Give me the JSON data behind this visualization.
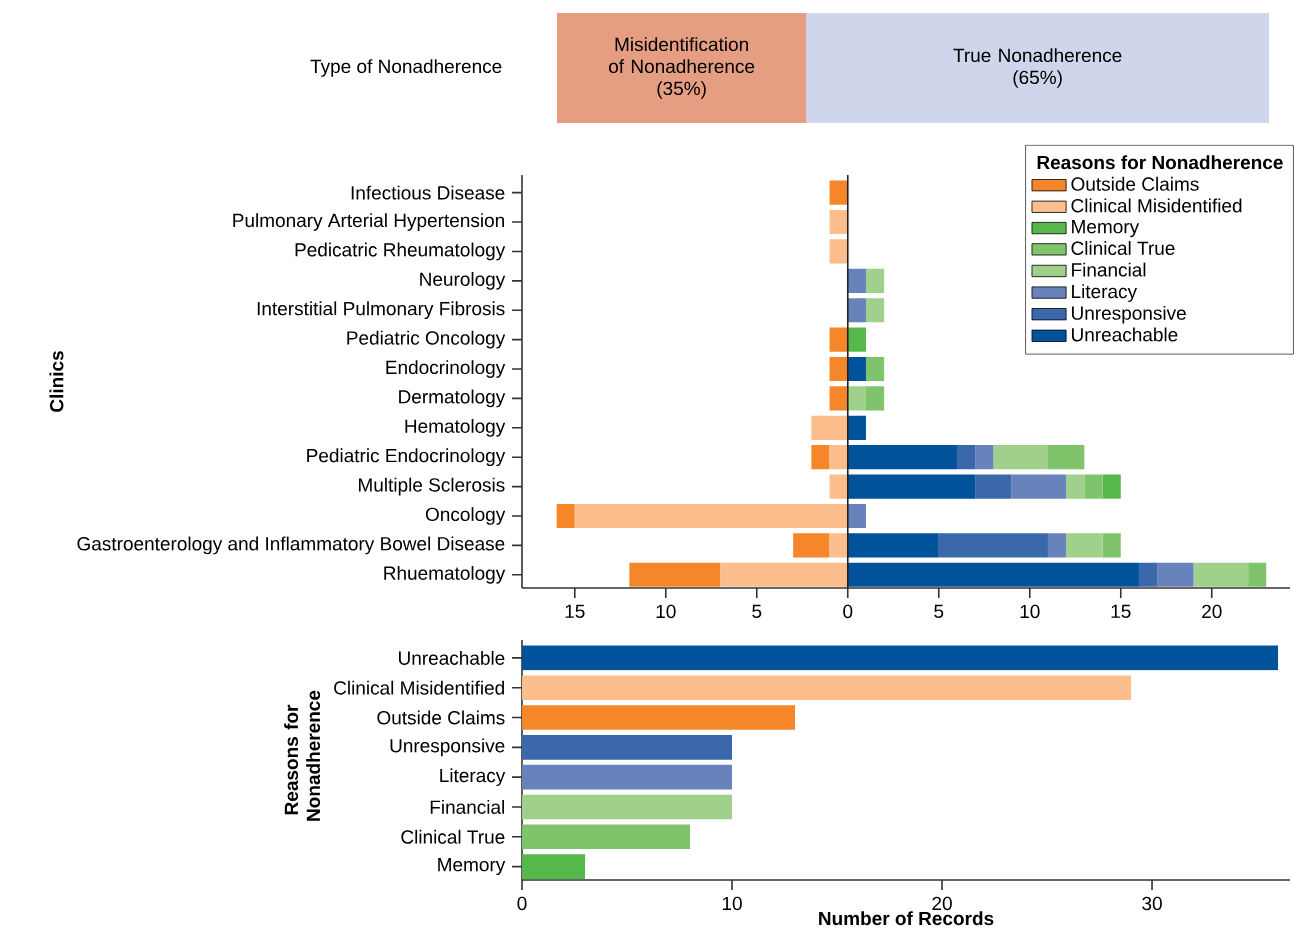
{
  "chart_data": [
    {
      "type": "bar",
      "orientation": "horizontal",
      "stacked": true,
      "categories": [
        "Type of Nonadherence"
      ],
      "series": [
        {
          "name": "Misidentification of Nonadherence",
          "color": "#e69e83",
          "values": [
            35
          ],
          "value_labels": [
            "(35%)"
          ]
        },
        {
          "name": "True Nonadherence",
          "color": "#cfd5ea",
          "values": [
            65
          ],
          "value_labels": [
            "(65%)"
          ]
        }
      ],
      "xlim": [
        0,
        100
      ],
      "tick_labels": "y"
    },
    {
      "type": "bar",
      "orientation": "horizontal",
      "stacked": true,
      "ylabel": "Clinics",
      "legend_title": "Reasons for Nonadherence",
      "legend": "top right",
      "categories": [
        "Infectious Disease",
        "Pulmonary Arterial Hypertension",
        "Pedicatric Rheumatology",
        "Neurology",
        "Interstitial Pulmonary Fibrosis",
        "Pediatric Oncology",
        "Endocrinology",
        "Dermatology",
        "Hematology",
        "Pediatric Endocrinology",
        "Multiple Sclerosis",
        "Oncology",
        "Gastroenterology and Inflammatory Bowel Disease",
        "Rhuematology"
      ],
      "series": [
        {
          "name": "Unreachable",
          "color": "#00529b",
          "values": [
            0,
            0,
            0,
            0,
            0,
            0,
            1,
            0,
            1,
            6,
            7,
            0,
            5,
            16
          ]
        },
        {
          "name": "Unresponsive",
          "color": "#3a68aa",
          "values": [
            0,
            0,
            0,
            0,
            0,
            0,
            0,
            0,
            0,
            1,
            2,
            0,
            6,
            1
          ]
        },
        {
          "name": "Literacy",
          "color": "#6882bb",
          "values": [
            0,
            0,
            0,
            1,
            1,
            0,
            0,
            0,
            0,
            1,
            3,
            1,
            1,
            2
          ]
        },
        {
          "name": "Financial",
          "color": "#9fd08c",
          "values": [
            0,
            0,
            0,
            1,
            1,
            0,
            0,
            1,
            0,
            3,
            1,
            0,
            2,
            3
          ]
        },
        {
          "name": "Clinical True",
          "color": "#7fc46a",
          "values": [
            0,
            0,
            0,
            0,
            0,
            0,
            1,
            1,
            0,
            2,
            1,
            0,
            1,
            1
          ]
        },
        {
          "name": "Memory",
          "color": "#56b84a",
          "values": [
            0,
            0,
            0,
            0,
            0,
            1,
            0,
            0,
            0,
            0,
            1,
            0,
            0,
            0
          ]
        },
        {
          "name": "Clinical Misidentified",
          "color": "#fbbe8c",
          "values": [
            0,
            -1,
            -1,
            0,
            0,
            0,
            0,
            0,
            -2,
            -1,
            -1,
            -15,
            -1,
            -7
          ]
        },
        {
          "name": "Outside Claims",
          "color": "#f5862a",
          "values": [
            -1,
            0,
            0,
            0,
            0,
            -1,
            -1,
            -1,
            0,
            -1,
            0,
            -1,
            -2,
            -5
          ]
        }
      ],
      "xlim": [
        -17.9,
        24.3
      ],
      "xticks": [
        {
          "value": -15,
          "label": "15"
        },
        {
          "value": -10,
          "label": "10"
        },
        {
          "value": -5,
          "label": "5"
        },
        0,
        5,
        10,
        15,
        20
      ],
      "ref_lines": [
        {
          "axis": "x",
          "value": 0,
          "color": "#222222"
        }
      ]
    },
    {
      "type": "bar",
      "orientation": "horizontal",
      "xlabel": "Number of Records",
      "ylabel": "Reasons for Nonadherence",
      "categories": [
        "Unreachable",
        "Clinical Misidentified",
        "Outside Claims",
        "Unresponsive",
        "Literacy",
        "Financial",
        "Clinical True",
        "Memory"
      ],
      "values": [
        36,
        29,
        13,
        10,
        10,
        10,
        8,
        3
      ],
      "colors": [
        "#00529b",
        "#fbbe8c",
        "#f5862a",
        "#3a68aa",
        "#6882bb",
        "#9fd08c",
        "#7fc46a",
        "#56b84a"
      ],
      "xlim": [
        0,
        36.57
      ],
      "xticks": [
        0,
        10,
        20,
        30
      ]
    }
  ]
}
